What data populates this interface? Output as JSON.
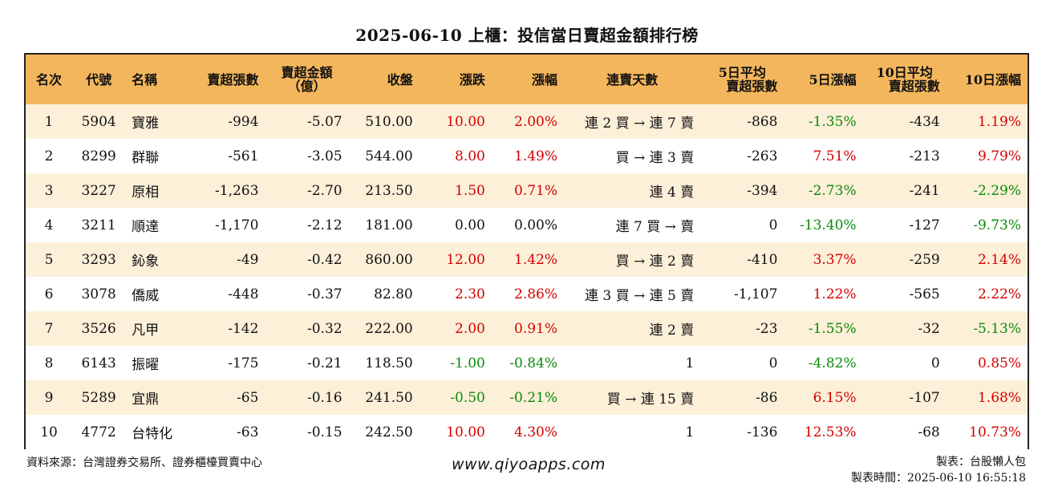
{
  "title": "2025-06-10 上櫃：投信當日賣超金額排行榜",
  "headers": {
    "rank": "名次",
    "code": "代號",
    "name": "名稱",
    "net_shares": "賣超張數",
    "net_amount_l1": "賣超金額",
    "net_amount_l2": "（億）",
    "close": "收盤",
    "change": "漲跌",
    "pct": "漲幅",
    "streak": "連賣天數",
    "avg5_l1": "5日平均",
    "avg5_l2": "賣超張數",
    "pct5": "5日漲幅",
    "avg10_l1": "10日平均",
    "avg10_l2": "賣超張數",
    "pct10": "10日漲幅"
  },
  "colors": {
    "header_bg": "#f4b65c",
    "stripe_bg": "#fdf0d9",
    "up": "#d40000",
    "down": "#0a8a0a"
  },
  "rows": [
    {
      "rank": "1",
      "code": "5904",
      "name": "寶雅",
      "net_shares": "-994",
      "net_amount": "-5.07",
      "close": "510.00",
      "change": "10.00",
      "pct": "2.00%",
      "streak": "連 2 買 → 連 7 賣",
      "avg5": "-868",
      "pct5": "-1.35%",
      "avg10": "-434",
      "pct10": "1.19%",
      "dir": "pos",
      "dir5": "neg",
      "dir10": "pos"
    },
    {
      "rank": "2",
      "code": "8299",
      "name": "群聯",
      "net_shares": "-561",
      "net_amount": "-3.05",
      "close": "544.00",
      "change": "8.00",
      "pct": "1.49%",
      "streak": "買 → 連 3 賣",
      "avg5": "-263",
      "pct5": "7.51%",
      "avg10": "-213",
      "pct10": "9.79%",
      "dir": "pos",
      "dir5": "pos",
      "dir10": "pos"
    },
    {
      "rank": "3",
      "code": "3227",
      "name": "原相",
      "net_shares": "-1,263",
      "net_amount": "-2.70",
      "close": "213.50",
      "change": "1.50",
      "pct": "0.71%",
      "streak": "連 4 賣",
      "avg5": "-394",
      "pct5": "-2.73%",
      "avg10": "-241",
      "pct10": "-2.29%",
      "dir": "pos",
      "dir5": "neg",
      "dir10": "neg"
    },
    {
      "rank": "4",
      "code": "3211",
      "name": "順達",
      "net_shares": "-1,170",
      "net_amount": "-2.12",
      "close": "181.00",
      "change": "0.00",
      "pct": "0.00%",
      "streak": "連 7 買 → 賣",
      "avg5": "0",
      "pct5": "-13.40%",
      "avg10": "-127",
      "pct10": "-9.73%",
      "dir": "zero",
      "dir5": "neg",
      "dir10": "neg"
    },
    {
      "rank": "5",
      "code": "3293",
      "name": "鈊象",
      "net_shares": "-49",
      "net_amount": "-0.42",
      "close": "860.00",
      "change": "12.00",
      "pct": "1.42%",
      "streak": "買 → 連 2 賣",
      "avg5": "-410",
      "pct5": "3.37%",
      "avg10": "-259",
      "pct10": "2.14%",
      "dir": "pos",
      "dir5": "pos",
      "dir10": "pos"
    },
    {
      "rank": "6",
      "code": "3078",
      "name": "僑威",
      "net_shares": "-448",
      "net_amount": "-0.37",
      "close": "82.80",
      "change": "2.30",
      "pct": "2.86%",
      "streak": "連 3 買 → 連 5 賣",
      "avg5": "-1,107",
      "pct5": "1.22%",
      "avg10": "-565",
      "pct10": "2.22%",
      "dir": "pos",
      "dir5": "pos",
      "dir10": "pos"
    },
    {
      "rank": "7",
      "code": "3526",
      "name": "凡甲",
      "net_shares": "-142",
      "net_amount": "-0.32",
      "close": "222.00",
      "change": "2.00",
      "pct": "0.91%",
      "streak": "連 2 賣",
      "avg5": "-23",
      "pct5": "-1.55%",
      "avg10": "-32",
      "pct10": "-5.13%",
      "dir": "pos",
      "dir5": "neg",
      "dir10": "neg"
    },
    {
      "rank": "8",
      "code": "6143",
      "name": "振曜",
      "net_shares": "-175",
      "net_amount": "-0.21",
      "close": "118.50",
      "change": "-1.00",
      "pct": "-0.84%",
      "streak": "1",
      "avg5": "0",
      "pct5": "-4.82%",
      "avg10": "0",
      "pct10": "0.85%",
      "dir": "neg",
      "dir5": "neg",
      "dir10": "pos"
    },
    {
      "rank": "9",
      "code": "5289",
      "name": "宜鼎",
      "net_shares": "-65",
      "net_amount": "-0.16",
      "close": "241.50",
      "change": "-0.50",
      "pct": "-0.21%",
      "streak": "買 → 連 15 賣",
      "avg5": "-86",
      "pct5": "6.15%",
      "avg10": "-107",
      "pct10": "1.68%",
      "dir": "neg",
      "dir5": "pos",
      "dir10": "pos"
    },
    {
      "rank": "10",
      "code": "4772",
      "name": "台特化",
      "net_shares": "-63",
      "net_amount": "-0.15",
      "close": "242.50",
      "change": "10.00",
      "pct": "4.30%",
      "streak": "1",
      "avg5": "-136",
      "pct5": "12.53%",
      "avg10": "-68",
      "pct10": "10.73%",
      "dir": "pos",
      "dir5": "pos",
      "dir10": "pos"
    }
  ],
  "footer": {
    "source": "資料來源：台灣證券交易所、證券櫃檯買賣中心",
    "website": "www.qiyoapps.com",
    "maker": "製表：台股懶人包",
    "made_time": "製表時間：2025-06-10 16:55:18"
  }
}
